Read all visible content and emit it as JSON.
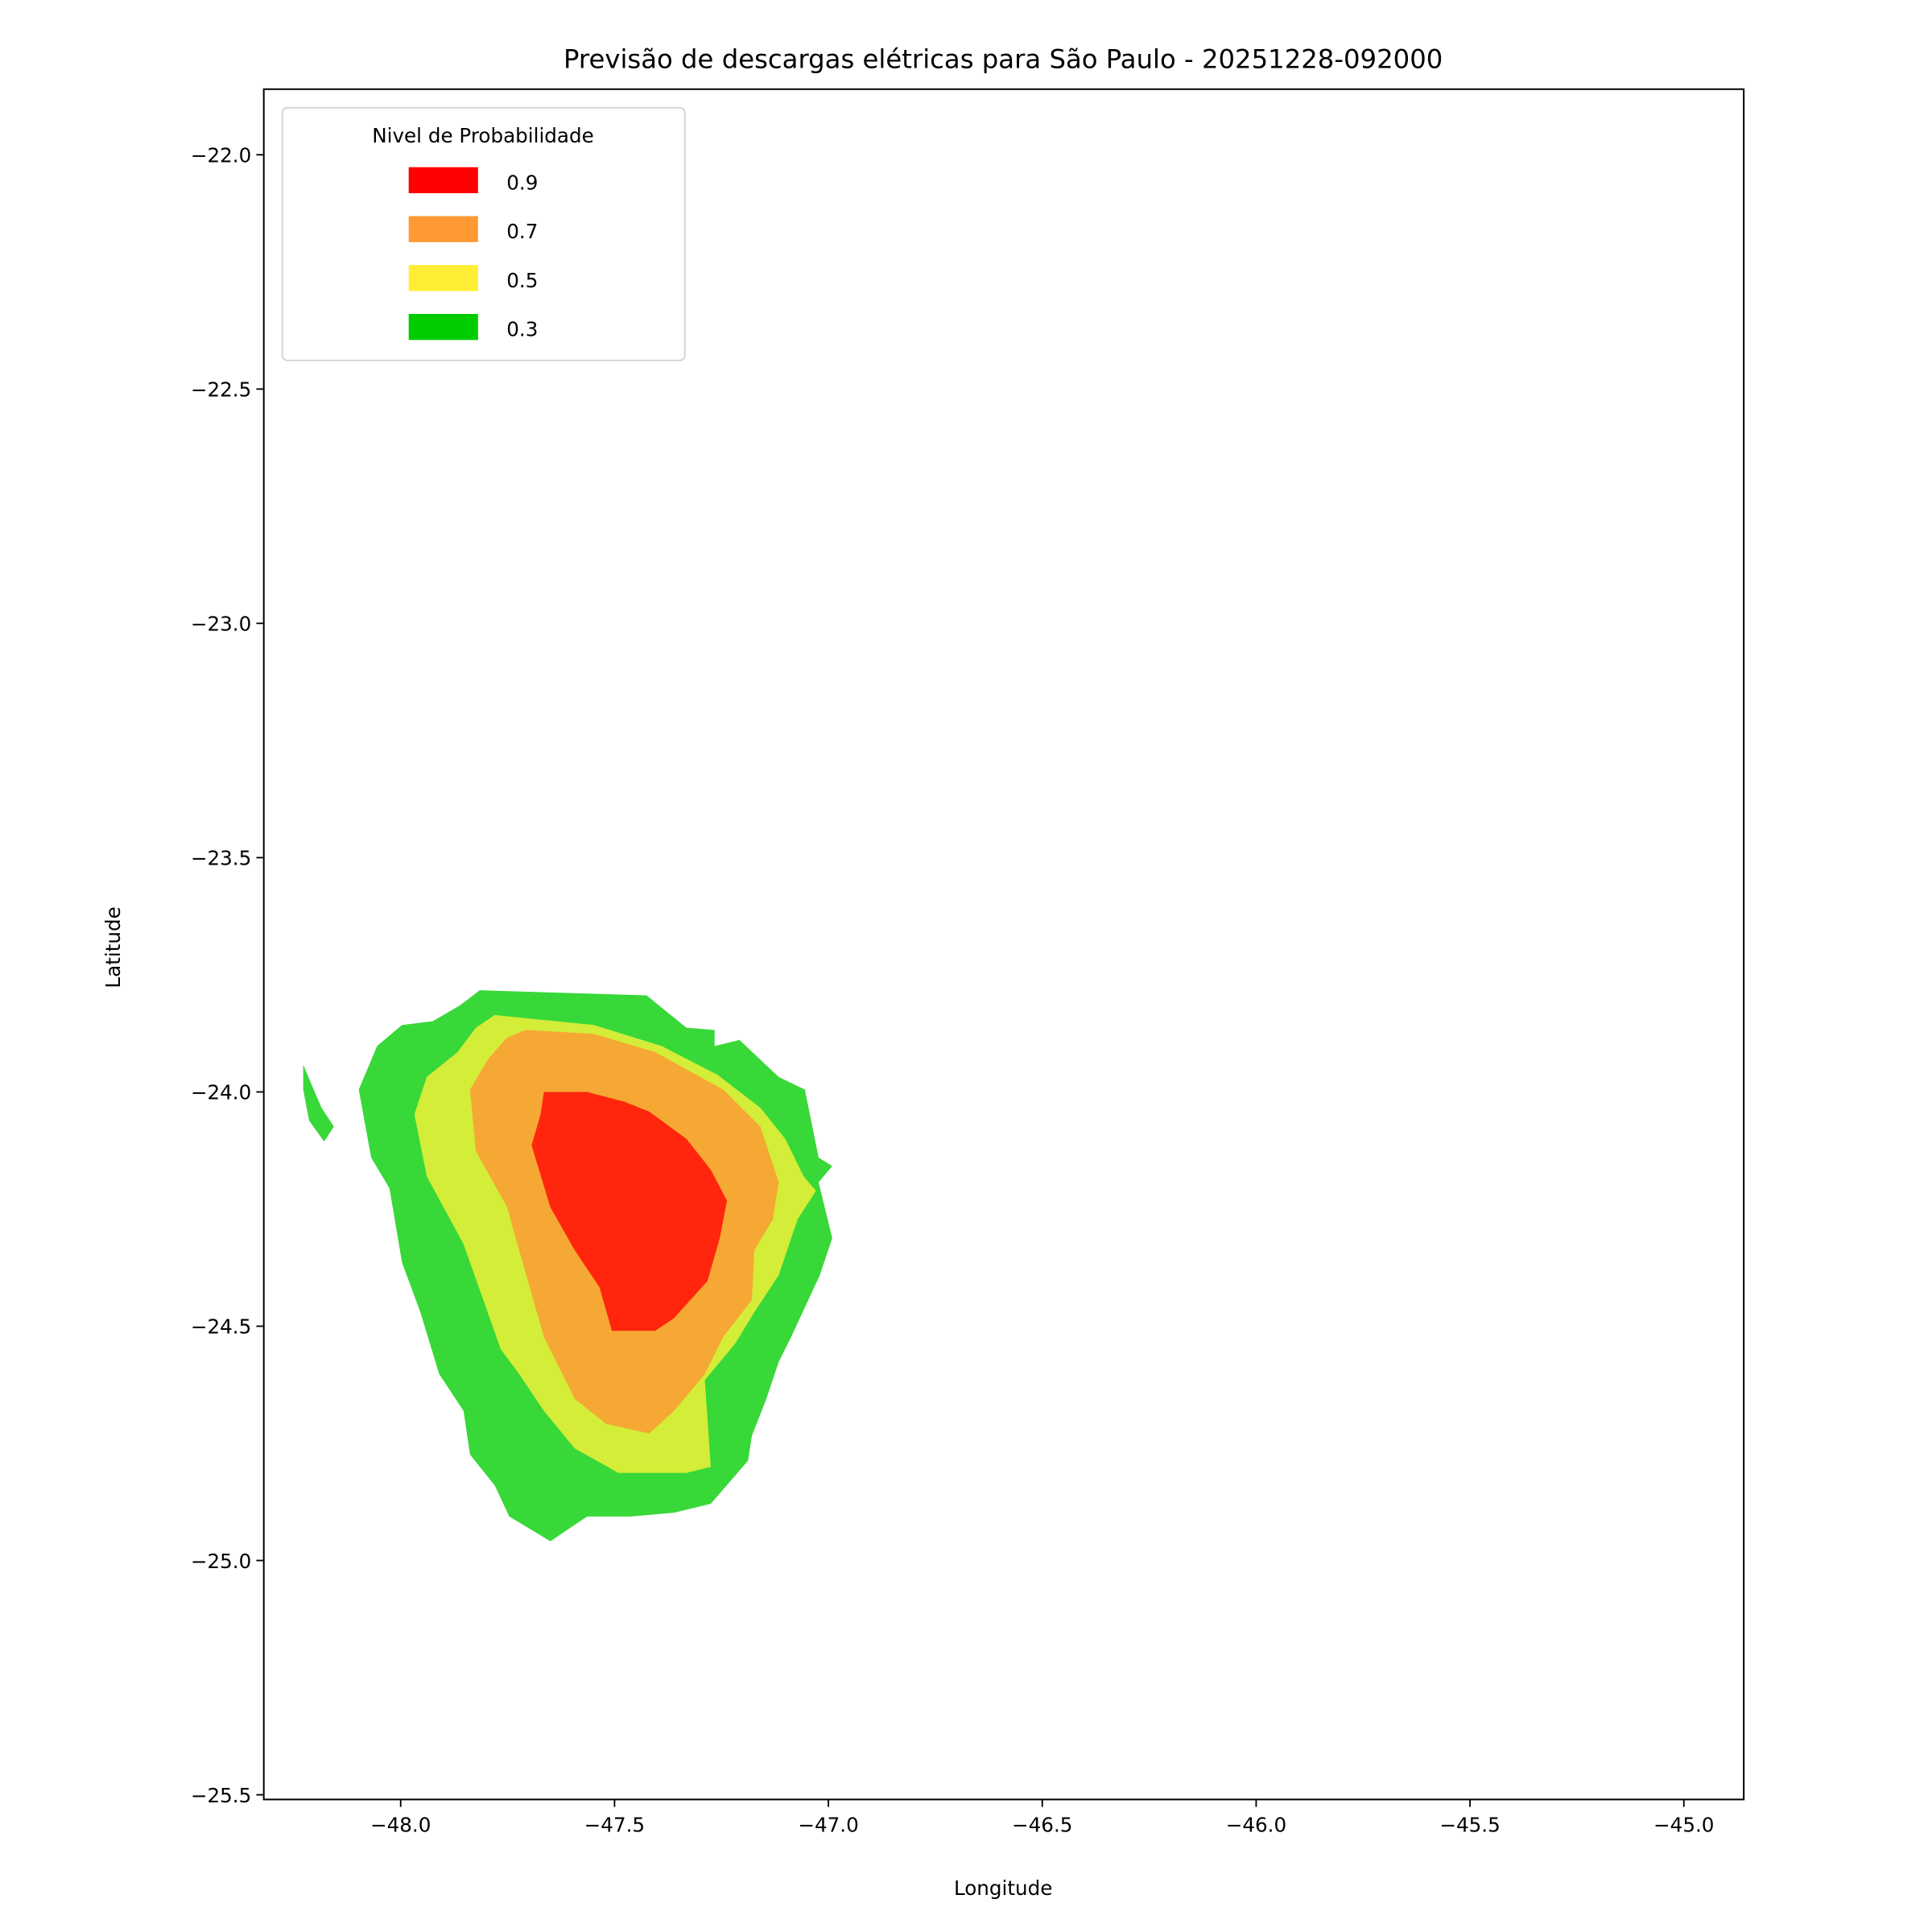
{
  "chart_data": {
    "type": "contourf",
    "title": "Previsão de descargas elétricas para São Paulo - 20251228-092000",
    "xlabel": "Longitude",
    "ylabel": "Latitude",
    "xlim": [
      -48.32,
      -44.86
    ],
    "ylim": [
      -25.51,
      -21.86
    ],
    "xticks": [
      -48.0,
      -47.5,
      -47.0,
      -46.5,
      -46.0,
      -45.5,
      -45.0
    ],
    "xtick_labels": [
      "−48.0",
      "−47.5",
      "−47.0",
      "−46.5",
      "−46.0",
      "−45.5",
      "−45.0"
    ],
    "yticks": [
      -22.0,
      -22.5,
      -23.0,
      -23.5,
      -24.0,
      -24.5,
      -25.0,
      -25.5
    ],
    "ytick_labels": [
      "−22.0",
      "−22.5",
      "−23.0",
      "−23.5",
      "−24.0",
      "−24.5",
      "−25.0",
      "−25.5"
    ],
    "grid": false,
    "legend": {
      "title": "Nivel de Probabilidade",
      "placement": "top-left",
      "entries": [
        {
          "label": "0.9",
          "color": "#ff0000"
        },
        {
          "label": "0.7",
          "color": "#ff9933"
        },
        {
          "label": "0.5",
          "color": "#ffee33"
        },
        {
          "label": "0.3",
          "color": "#00cc00"
        }
      ]
    },
    "levels": [
      {
        "level": 0.3,
        "fill": "#38d838",
        "polygons": [
          [
            [
              -47.815,
              -23.783
            ],
            [
              -47.425,
              -23.794
            ],
            [
              -47.332,
              -23.863
            ],
            [
              -47.266,
              -23.868
            ],
            [
              -47.266,
              -23.902
            ],
            [
              -47.208,
              -23.889
            ],
            [
              -47.116,
              -23.968
            ],
            [
              -47.055,
              -23.995
            ],
            [
              -47.023,
              -24.14
            ],
            [
              -46.991,
              -24.158
            ],
            [
              -47.023,
              -24.193
            ],
            [
              -46.991,
              -24.312
            ],
            [
              -47.02,
              -24.391
            ],
            [
              -47.087,
              -24.523
            ],
            [
              -47.116,
              -24.576
            ],
            [
              -47.145,
              -24.655
            ],
            [
              -47.179,
              -24.734
            ],
            [
              -47.188,
              -24.787
            ],
            [
              -47.275,
              -24.879
            ],
            [
              -47.361,
              -24.898
            ],
            [
              -47.462,
              -24.906
            ],
            [
              -47.564,
              -24.906
            ],
            [
              -47.65,
              -24.959
            ],
            [
              -47.746,
              -24.906
            ],
            [
              -47.78,
              -24.84
            ],
            [
              -47.838,
              -24.774
            ],
            [
              -47.853,
              -24.681
            ],
            [
              -47.91,
              -24.602
            ],
            [
              -47.954,
              -24.47
            ],
            [
              -47.997,
              -24.364
            ],
            [
              -48.026,
              -24.206
            ],
            [
              -48.069,
              -24.14
            ],
            [
              -48.098,
              -23.995
            ],
            [
              -48.055,
              -23.902
            ],
            [
              -47.997,
              -23.857
            ],
            [
              -47.925,
              -23.849
            ],
            [
              -47.861,
              -23.815
            ]
          ],
          [
            [
              -48.228,
              -23.942
            ],
            [
              -48.185,
              -24.034
            ],
            [
              -48.156,
              -24.074
            ],
            [
              -48.179,
              -24.106
            ],
            [
              -48.214,
              -24.061
            ],
            [
              -48.228,
              -23.995
            ]
          ]
        ]
      },
      {
        "level": 0.5,
        "fill": "#d4ed38",
        "polygons": [
          [
            [
              -47.78,
              -23.836
            ],
            [
              -47.549,
              -23.857
            ],
            [
              -47.39,
              -23.902
            ],
            [
              -47.26,
              -23.963
            ],
            [
              -47.159,
              -24.034
            ],
            [
              -47.101,
              -24.1
            ],
            [
              -47.058,
              -24.18
            ],
            [
              -47.029,
              -24.211
            ],
            [
              -47.072,
              -24.272
            ],
            [
              -47.116,
              -24.391
            ],
            [
              -47.173,
              -24.47
            ],
            [
              -47.217,
              -24.536
            ],
            [
              -47.289,
              -24.615
            ],
            [
              -47.275,
              -24.8
            ],
            [
              -47.332,
              -24.813
            ],
            [
              -47.491,
              -24.813
            ],
            [
              -47.593,
              -24.761
            ],
            [
              -47.665,
              -24.681
            ],
            [
              -47.723,
              -24.602
            ],
            [
              -47.766,
              -24.549
            ],
            [
              -47.853,
              -24.325
            ],
            [
              -47.939,
              -24.18
            ],
            [
              -47.968,
              -24.048
            ],
            [
              -47.939,
              -23.968
            ],
            [
              -47.867,
              -23.915
            ],
            [
              -47.824,
              -23.863
            ]
          ]
        ]
      },
      {
        "level": 0.7,
        "fill": "#f5a833",
        "polygons": [
          [
            [
              -47.708,
              -23.868
            ],
            [
              -47.549,
              -23.876
            ],
            [
              -47.405,
              -23.915
            ],
            [
              -47.246,
              -23.995
            ],
            [
              -47.159,
              -24.074
            ],
            [
              -47.116,
              -24.193
            ],
            [
              -47.13,
              -24.272
            ],
            [
              -47.173,
              -24.338
            ],
            [
              -47.179,
              -24.444
            ],
            [
              -47.246,
              -24.523
            ],
            [
              -47.289,
              -24.602
            ],
            [
              -47.361,
              -24.681
            ],
            [
              -47.419,
              -24.729
            ],
            [
              -47.52,
              -24.708
            ],
            [
              -47.593,
              -24.655
            ],
            [
              -47.665,
              -24.523
            ],
            [
              -47.723,
              -24.338
            ],
            [
              -47.751,
              -24.246
            ],
            [
              -47.824,
              -24.127
            ],
            [
              -47.838,
              -23.995
            ],
            [
              -47.795,
              -23.929
            ],
            [
              -47.751,
              -23.884
            ]
          ]
        ]
      },
      {
        "level": 0.9,
        "fill": "#ff260d",
        "polygons": [
          [
            [
              -47.665,
              -24.0
            ],
            [
              -47.564,
              -24.0
            ],
            [
              -47.477,
              -24.021
            ],
            [
              -47.419,
              -24.042
            ],
            [
              -47.332,
              -24.1
            ],
            [
              -47.275,
              -24.166
            ],
            [
              -47.237,
              -24.232
            ],
            [
              -47.254,
              -24.312
            ],
            [
              -47.283,
              -24.404
            ],
            [
              -47.361,
              -24.483
            ],
            [
              -47.405,
              -24.51
            ],
            [
              -47.506,
              -24.51
            ],
            [
              -47.535,
              -24.417
            ],
            [
              -47.593,
              -24.338
            ],
            [
              -47.65,
              -24.246
            ],
            [
              -47.694,
              -24.114
            ],
            [
              -47.673,
              -24.048
            ]
          ]
        ]
      }
    ]
  }
}
